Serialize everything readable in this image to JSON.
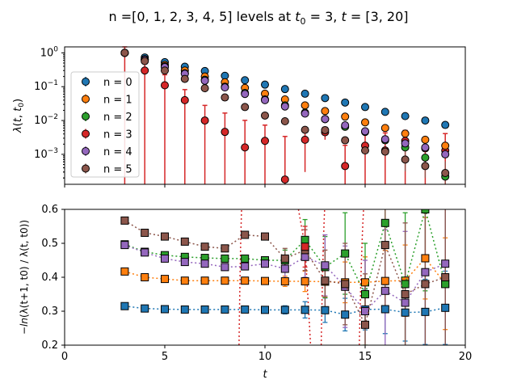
{
  "chart_data": {
    "title": "n =[0, 1, 2, 3, 4, 5] levels at t0 = 3, t = [3, 20]",
    "title_parts": {
      "prefix": "n =[0, 1, 2, 3, 4, 5] levels at ",
      "t0_sym": "t",
      "t0_sub": "0",
      "t0_val": " = 3, ",
      "t_sym": "t",
      "t_val": " = [3, 20]"
    },
    "xlabel": "t",
    "xlim": [
      0,
      20
    ],
    "xticks": [
      0,
      5,
      10,
      15,
      20
    ],
    "colors": [
      "#1f77b4",
      "#ff7f0e",
      "#2ca02c",
      "#d62728",
      "#9467bd",
      "#8c564b"
    ],
    "top": {
      "type": "scatter",
      "ylabel": "λ(t, t0)",
      "yscale": "log",
      "ylim": [
        0.00013,
        1.5
      ],
      "yticks": [
        "10^0",
        "10^-1",
        "10^-2",
        "10^-3"
      ],
      "legend_position": "center-left",
      "series": [
        {
          "name": "n = 0",
          "x": [
            3,
            4,
            5,
            6,
            7,
            8,
            9,
            10,
            11,
            12,
            13,
            14,
            15,
            16,
            17,
            18,
            19
          ],
          "y": [
            1.0,
            0.73,
            0.53,
            0.39,
            0.29,
            0.21,
            0.155,
            0.115,
            0.085,
            0.062,
            0.046,
            0.034,
            0.025,
            0.018,
            0.0135,
            0.01,
            0.0074
          ]
        },
        {
          "name": "n = 1",
          "x": [
            3,
            4,
            5,
            6,
            7,
            8,
            9,
            10,
            11,
            12,
            13,
            14,
            15,
            16,
            17,
            18,
            19
          ],
          "y": [
            1.0,
            0.65,
            0.44,
            0.3,
            0.2,
            0.135,
            0.092,
            0.062,
            0.042,
            0.028,
            0.019,
            0.013,
            0.0088,
            0.006,
            0.0041,
            0.0027,
            0.0018
          ]
        },
        {
          "name": "n = 2",
          "x": [
            3,
            4,
            5,
            6,
            7,
            8,
            9,
            10,
            11,
            12,
            13,
            14,
            15,
            16,
            17,
            18,
            19
          ],
          "y": [
            1.0,
            0.63,
            0.4,
            0.25,
            0.16,
            0.1,
            0.065,
            0.042,
            0.028,
            0.017,
            0.011,
            0.0065,
            0.0046,
            0.0026,
            0.0016,
            0.0008,
            0.00022
          ]
        },
        {
          "name": "n = 3",
          "x": [
            3,
            4,
            5,
            6,
            7,
            8,
            9,
            10,
            11,
            12,
            13,
            14,
            15,
            16,
            17,
            18,
            19
          ],
          "y": [
            1.0,
            0.3,
            0.11,
            0.04,
            0.01,
            0.0046,
            0.0016,
            0.0025,
            0.00018,
            0.0027,
            0.0045,
            0.00045,
            0.0018,
            0.0013,
            0.0025,
            0.0015,
            0.0013
          ],
          "yerr_upper": [
            1.0,
            0.31,
            0.115,
            0.042,
            0.018,
            0.012,
            0.0085,
            0.0048,
            0.0032,
            0.0024,
            0.0018,
            0.0014,
            0.0025,
            0.003,
            0.0026,
            0.0017,
            0.0028
          ]
        },
        {
          "name": "n = 4",
          "x": [
            3,
            4,
            5,
            6,
            7,
            8,
            9,
            10,
            11,
            12,
            13,
            14,
            15,
            16,
            17,
            18,
            19
          ],
          "y": [
            1.0,
            0.62,
            0.38,
            0.24,
            0.15,
            0.095,
            0.061,
            0.04,
            0.026,
            0.016,
            0.011,
            0.0072,
            0.0048,
            0.0028,
            0.0021,
            0.0016,
            0.001
          ]
        },
        {
          "name": "n = 5",
          "x": [
            3,
            4,
            5,
            6,
            7,
            8,
            9,
            10,
            11,
            12,
            13,
            14,
            15,
            16,
            17,
            18,
            19
          ],
          "y": [
            1.0,
            0.57,
            0.3,
            0.17,
            0.09,
            0.048,
            0.025,
            0.014,
            0.0095,
            0.0053,
            0.0052,
            0.0026,
            0.0013,
            0.0012,
            0.0007,
            0.00045,
            0.00028
          ]
        }
      ]
    },
    "bottom": {
      "type": "scatter",
      "ylabel": "-ln(λ(t+1, t0) / λ(t, t0))",
      "ylim": [
        0.2,
        0.6
      ],
      "yticks": [
        0.2,
        0.3,
        0.4,
        0.5,
        0.6
      ],
      "series": [
        {
          "name": "n = 0",
          "x": [
            3,
            4,
            5,
            6,
            7,
            8,
            9,
            10,
            11,
            12,
            13,
            14,
            15,
            16,
            17,
            18,
            19
          ],
          "y": [
            0.315,
            0.308,
            0.306,
            0.305,
            0.305,
            0.305,
            0.305,
            0.304,
            0.304,
            0.304,
            0.303,
            0.29,
            0.305,
            0.306,
            0.296,
            0.298,
            0.31
          ]
        },
        {
          "name": "n = 1",
          "x": [
            3,
            4,
            5,
            6,
            7,
            8,
            9,
            10,
            11,
            12,
            13,
            14,
            15,
            16,
            17,
            18,
            19
          ],
          "y": [
            0.417,
            0.4,
            0.395,
            0.39,
            0.39,
            0.39,
            0.39,
            0.389,
            0.388,
            0.388,
            0.387,
            0.385,
            0.385,
            0.389,
            0.39,
            0.456,
            0.381
          ]
        },
        {
          "name": "n = 2",
          "x": [
            3,
            4,
            5,
            6,
            7,
            8,
            9,
            10,
            11,
            12,
            13,
            14,
            15,
            16,
            17,
            18,
            19
          ],
          "y": [
            0.497,
            0.475,
            0.465,
            0.46,
            0.457,
            0.455,
            0.455,
            0.45,
            0.45,
            0.51,
            0.43,
            0.47,
            0.35,
            0.56,
            0.38,
            0.6,
            0.38
          ]
        },
        {
          "name": "n = 4",
          "x": [
            3,
            4,
            5,
            6,
            7,
            8,
            9,
            10,
            11,
            12,
            13,
            14,
            15,
            16,
            17,
            18,
            19
          ],
          "y": [
            0.495,
            0.473,
            0.455,
            0.445,
            0.44,
            0.43,
            0.432,
            0.44,
            0.425,
            0.46,
            0.435,
            0.372,
            0.3,
            0.36,
            0.325,
            0.415,
            0.44
          ]
        },
        {
          "name": "n = 5",
          "x": [
            3,
            4,
            5,
            6,
            7,
            8,
            9,
            10,
            11,
            12,
            13,
            14,
            15,
            16,
            17,
            18,
            19
          ],
          "y": [
            0.567,
            0.531,
            0.52,
            0.505,
            0.49,
            0.485,
            0.525,
            0.52,
            0.455,
            0.48,
            0.39,
            0.38,
            0.26,
            0.495,
            0.35,
            0.38,
            0.4
          ]
        },
        {
          "name": "n = 3",
          "x": [
            12
          ],
          "y": [
            0.49
          ]
        }
      ]
    }
  }
}
